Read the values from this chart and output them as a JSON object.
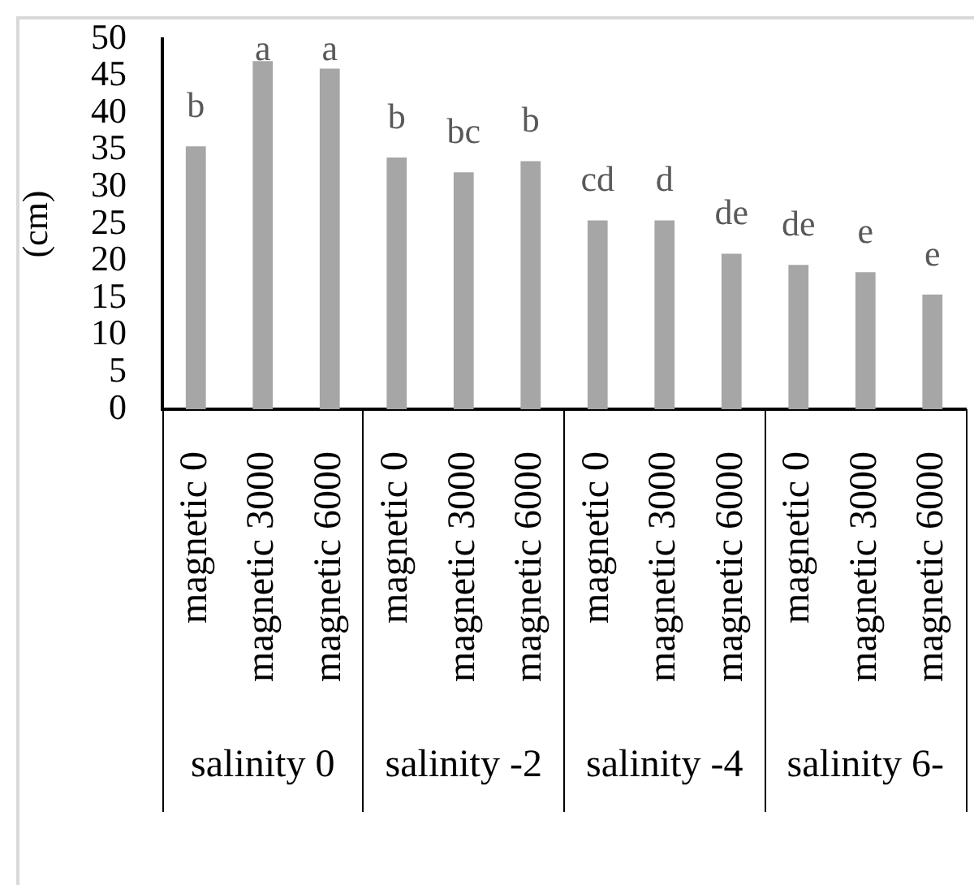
{
  "chart_data": {
    "type": "bar",
    "ylabel": "(cm)",
    "categories": [
      "magnetic 0",
      "magnetic 3000",
      "magnetic 6000",
      "magnetic 0",
      "magnetic 3000",
      "magnetic 6000",
      "magnetic 0",
      "magnetic 3000",
      "magnetic 6000",
      "magnetic 0",
      "magnetic 3000",
      "magnetic 6000"
    ],
    "values": [
      35.5,
      47,
      46,
      34,
      32,
      33.5,
      25.5,
      25.5,
      21,
      19.5,
      18.5,
      15.5
    ],
    "color": "#a6a6a6",
    "value_labels": [
      "b",
      "a",
      "a",
      "b",
      "bc",
      "b",
      "cd",
      "d",
      "de",
      "de",
      "e",
      "e"
    ],
    "ylim": [
      0,
      50
    ],
    "yticks": [
      0,
      5,
      10,
      15,
      20,
      25,
      30,
      35,
      40,
      45,
      50
    ],
    "annotations": [
      "salinity 0",
      "salinity -2",
      "salinity -4",
      "salinity 6-"
    ]
  }
}
